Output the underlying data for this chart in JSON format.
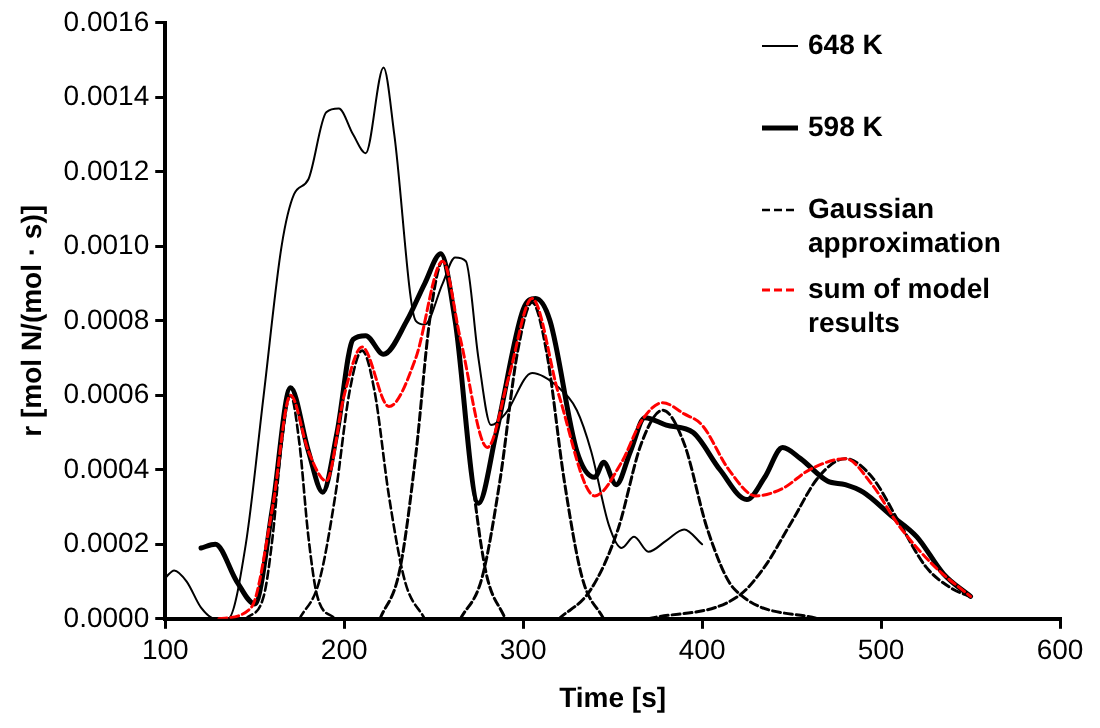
{
  "chart_data": {
    "type": "line",
    "xlabel": "Time [s]",
    "ylabel": "r [mol N/(mol · s)]",
    "xlim": [
      100,
      600
    ],
    "xticks": [
      100,
      200,
      300,
      400,
      500,
      600
    ],
    "ylim": [
      0,
      0.0016
    ],
    "yticks": [
      {
        "value": 0,
        "label": "0.0000"
      },
      {
        "value": 0.0002,
        "label": "0.0002"
      },
      {
        "value": 0.0004,
        "label": "0.0004"
      },
      {
        "value": 0.0006,
        "label": "0.0006"
      },
      {
        "value": 0.0008,
        "label": "0.0008"
      },
      {
        "value": 0.001,
        "label": "0.0010"
      },
      {
        "value": 0.0012,
        "label": "0.0012"
      },
      {
        "value": 0.0014,
        "label": "0.0014"
      },
      {
        "value": 0.0016,
        "label": "0.0016"
      }
    ],
    "grid": false,
    "legend": "top right",
    "marker": "none",
    "series": [
      {
        "name": "648 K",
        "color": "#000000",
        "line_style": "solid",
        "x": [
          100,
          105,
          112,
          120,
          128,
          135,
          145,
          155,
          165,
          172,
          180,
          190,
          197,
          205,
          212,
          222,
          228,
          240,
          245,
          255,
          262,
          268,
          275,
          282,
          290,
          305,
          320,
          330,
          338,
          348,
          355,
          362,
          370,
          380,
          390,
          400
        ],
        "values": [
          0.00011,
          0.00013,
          0.0001,
          3e-05,
          0,
          0,
          0.0002,
          0.0006,
          0.001,
          0.00114,
          0.00118,
          0.00136,
          0.00137,
          0.0013,
          0.00125,
          0.00148,
          0.0013,
          0.0008,
          0.00079,
          0.0009,
          0.00097,
          0.00096,
          0.0007,
          0.00052,
          0.00055,
          0.00066,
          0.00062,
          0.00056,
          0.00045,
          0.00025,
          0.00019,
          0.00022,
          0.00018,
          0.00021,
          0.00024,
          0.0002
        ]
      },
      {
        "name": "598 K",
        "color": "#000000",
        "line_style": "solid",
        "x": [
          120,
          128,
          140,
          150,
          160,
          170,
          180,
          188,
          196,
          205,
          212,
          222,
          235,
          245,
          254,
          262,
          275,
          285,
          300,
          307,
          315,
          330,
          340,
          345,
          352,
          360,
          368,
          380,
          395,
          410,
          425,
          435,
          445,
          455,
          470,
          480,
          490,
          505,
          520,
          535,
          550
        ],
        "values": [
          0.00019,
          0.0002,
          0.0001,
          4e-05,
          0.0003,
          0.00062,
          0.00045,
          0.00034,
          0.0005,
          0.00075,
          0.00076,
          0.00071,
          0.0008,
          0.0009,
          0.00098,
          0.0008,
          0.00031,
          0.0005,
          0.00083,
          0.00086,
          0.0008,
          0.00045,
          0.00038,
          0.00042,
          0.00036,
          0.00045,
          0.00054,
          0.00052,
          0.0005,
          0.0004,
          0.00032,
          0.00038,
          0.00046,
          0.00043,
          0.00037,
          0.00036,
          0.00034,
          0.00028,
          0.00022,
          0.00012,
          6e-05
        ]
      },
      {
        "name": "Gaussian approximation",
        "color": "#000000",
        "line_style": "dashed",
        "x": [
          145,
          155,
          160,
          165,
          170,
          175,
          180,
          185,
          195
        ],
        "values": [
          0,
          6e-05,
          0.00022,
          0.00047,
          0.0006,
          0.00047,
          0.00022,
          6e-05,
          0
        ]
      },
      {
        "color": "#000000",
        "line_style": "dashed",
        "x": [
          175,
          186,
          195,
          203,
          210,
          217,
          225,
          234,
          245
        ],
        "values": [
          0,
          0.0001,
          0.00033,
          0.00061,
          0.00072,
          0.00061,
          0.00033,
          0.0001,
          0
        ]
      },
      {
        "color": "#000000",
        "line_style": "dashed",
        "x": [
          220,
          231,
          240,
          248,
          255,
          262,
          270,
          279,
          290
        ],
        "values": [
          0,
          0.00013,
          0.00044,
          0.00081,
          0.00096,
          0.00081,
          0.00044,
          0.00013,
          0
        ]
      },
      {
        "color": "#000000",
        "line_style": "dashed",
        "x": [
          265,
          277,
          287,
          297,
          305,
          313,
          323,
          333,
          345
        ],
        "values": [
          0,
          0.00011,
          0.00037,
          0.00072,
          0.00085,
          0.00072,
          0.00037,
          0.00011,
          0
        ]
      },
      {
        "color": "#000000",
        "line_style": "dashed",
        "x": [
          320,
          338,
          353,
          366,
          378,
          390,
          403,
          418,
          465
        ],
        "values": [
          0,
          8e-05,
          0.00024,
          0.00047,
          0.00056,
          0.00047,
          0.00024,
          8e-05,
          0
        ]
      },
      {
        "color": "#000000",
        "line_style": "dashed",
        "x": [
          370,
          420,
          435,
          450,
          465,
          480,
          495,
          510,
          525,
          540,
          550
        ],
        "values": [
          0,
          6e-05,
          0.00014,
          0.00026,
          0.00038,
          0.00043,
          0.00038,
          0.00026,
          0.00014,
          8e-05,
          6e-05
        ]
      },
      {
        "name": "sum of model results",
        "color": "#ff0000",
        "line_style": "dashed",
        "x": [
          130,
          148,
          160,
          170,
          180,
          190,
          200,
          210,
          225,
          240,
          255,
          265,
          280,
          292,
          305,
          320,
          340,
          355,
          366,
          378,
          390,
          400,
          415,
          430,
          445,
          460,
          480,
          495,
          510,
          530,
          550
        ],
        "values": [
          0,
          3e-05,
          0.0003,
          0.0006,
          0.00045,
          0.00037,
          0.0006,
          0.00073,
          0.00057,
          0.0007,
          0.00096,
          0.00075,
          0.00046,
          0.00065,
          0.00086,
          0.0006,
          0.00033,
          0.00042,
          0.00053,
          0.00058,
          0.00055,
          0.00052,
          0.0004,
          0.00033,
          0.00035,
          0.0004,
          0.00043,
          0.00036,
          0.00025,
          0.00014,
          6e-05
        ]
      }
    ]
  }
}
